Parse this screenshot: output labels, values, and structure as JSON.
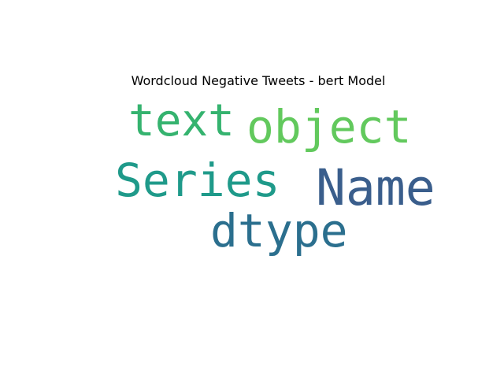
{
  "title": "Wordcloud Negative Tweets - bert Model",
  "words": [
    {
      "text": "text",
      "color": "#35b36f"
    },
    {
      "text": "object",
      "color": "#62c95d"
    },
    {
      "text": "Series",
      "color": "#1f9a8a"
    },
    {
      "text": "Name",
      "color": "#3a5e8c"
    },
    {
      "text": "dtype",
      "color": "#2b6f8e"
    }
  ],
  "background": "#ffffff"
}
